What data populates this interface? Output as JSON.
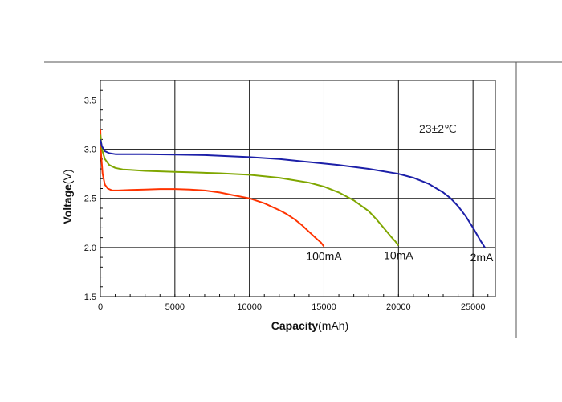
{
  "chart_data": {
    "type": "line",
    "title": "",
    "xlabel_bold": "Capacity",
    "xlabel_unit": "(mAh)",
    "ylabel_bold": "Voltage",
    "ylabel_unit": "(V)",
    "xlim": [
      0,
      26500
    ],
    "ylim": [
      1.5,
      3.7
    ],
    "xticks": [
      0,
      5000,
      10000,
      15000,
      20000,
      25000
    ],
    "xtick_labels": [
      "0",
      "5000",
      "10000",
      "15000",
      "20000",
      "25000"
    ],
    "yticks": [
      1.5,
      2.0,
      2.5,
      3.0,
      3.5
    ],
    "ytick_labels": [
      "1.5",
      "2.0",
      "2.5",
      "3.0",
      "3.5"
    ],
    "grid": true,
    "annotation": "23±2℃",
    "series": [
      {
        "name": "100mA",
        "color": "#ff3300",
        "x": [
          0,
          50,
          150,
          300,
          500,
          800,
          1200,
          2000,
          3000,
          4000,
          5000,
          6000,
          7000,
          8000,
          9000,
          10000,
          11000,
          12000,
          12500,
          13000,
          13500,
          14000,
          14500,
          14800,
          15000
        ],
        "y": [
          3.2,
          2.95,
          2.75,
          2.64,
          2.6,
          2.58,
          2.58,
          2.585,
          2.59,
          2.595,
          2.595,
          2.59,
          2.58,
          2.56,
          2.53,
          2.5,
          2.45,
          2.38,
          2.34,
          2.29,
          2.23,
          2.16,
          2.09,
          2.05,
          2.01
        ]
      },
      {
        "name": "10mA",
        "color": "#7fa600",
        "x": [
          0,
          100,
          300,
          600,
          1000,
          1500,
          2000,
          3000,
          4000,
          5000,
          6000,
          8000,
          10000,
          12000,
          14000,
          15000,
          16000,
          17000,
          18000,
          18500,
          19000,
          19500,
          19800,
          20000
        ],
        "y": [
          3.15,
          3.0,
          2.9,
          2.84,
          2.81,
          2.795,
          2.79,
          2.78,
          2.775,
          2.77,
          2.765,
          2.755,
          2.74,
          2.71,
          2.66,
          2.62,
          2.56,
          2.48,
          2.37,
          2.29,
          2.2,
          2.11,
          2.06,
          2.02
        ]
      },
      {
        "name": "2mA",
        "color": "#1c1fa8",
        "x": [
          0,
          100,
          300,
          600,
          1000,
          2000,
          3000,
          5000,
          7000,
          10000,
          12000,
          14000,
          16000,
          18000,
          20000,
          21000,
          22000,
          23000,
          23500,
          24000,
          24500,
          25000,
          25500,
          25800
        ],
        "y": [
          3.1,
          3.03,
          2.98,
          2.96,
          2.95,
          2.95,
          2.95,
          2.945,
          2.94,
          2.92,
          2.9,
          2.87,
          2.84,
          2.8,
          2.75,
          2.71,
          2.65,
          2.56,
          2.5,
          2.42,
          2.32,
          2.2,
          2.07,
          2.0
        ]
      }
    ]
  }
}
